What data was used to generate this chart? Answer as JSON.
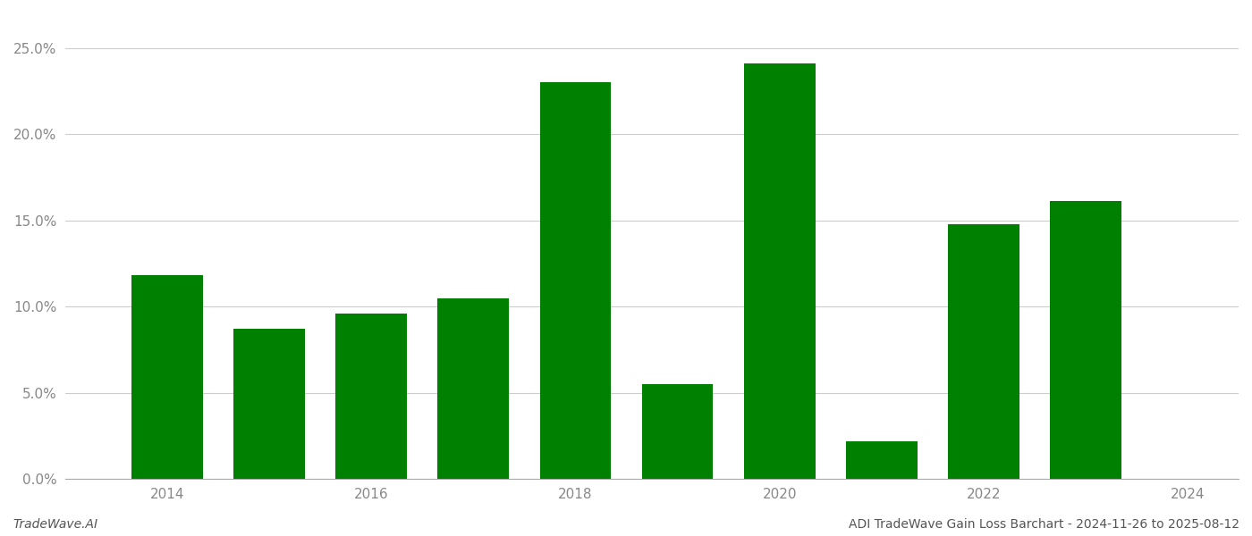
{
  "years": [
    2014,
    2015,
    2016,
    2017,
    2018,
    2019,
    2020,
    2021,
    2022,
    2023
  ],
  "values": [
    0.118,
    0.087,
    0.096,
    0.105,
    0.23,
    0.055,
    0.241,
    0.022,
    0.148,
    0.161
  ],
  "bar_color": "#008000",
  "background_color": "#ffffff",
  "ylim": [
    0,
    0.27
  ],
  "yticks": [
    0.0,
    0.05,
    0.1,
    0.15,
    0.2,
    0.25
  ],
  "xtick_labels": [
    "2014",
    "2016",
    "2018",
    "2020",
    "2022",
    "2024"
  ],
  "xtick_positions": [
    2014,
    2016,
    2018,
    2020,
    2022,
    2024
  ],
  "xlim": [
    2013.0,
    2024.5
  ],
  "grid_color": "#cccccc",
  "footer_left": "TradeWave.AI",
  "footer_right": "ADI TradeWave Gain Loss Barchart - 2024-11-26 to 2025-08-12",
  "bar_width": 0.7,
  "tick_label_color": "#888888",
  "tick_label_fontsize": 11,
  "footer_color_left": "#555555",
  "footer_color_right": "#555555",
  "footer_fontsize": 10
}
